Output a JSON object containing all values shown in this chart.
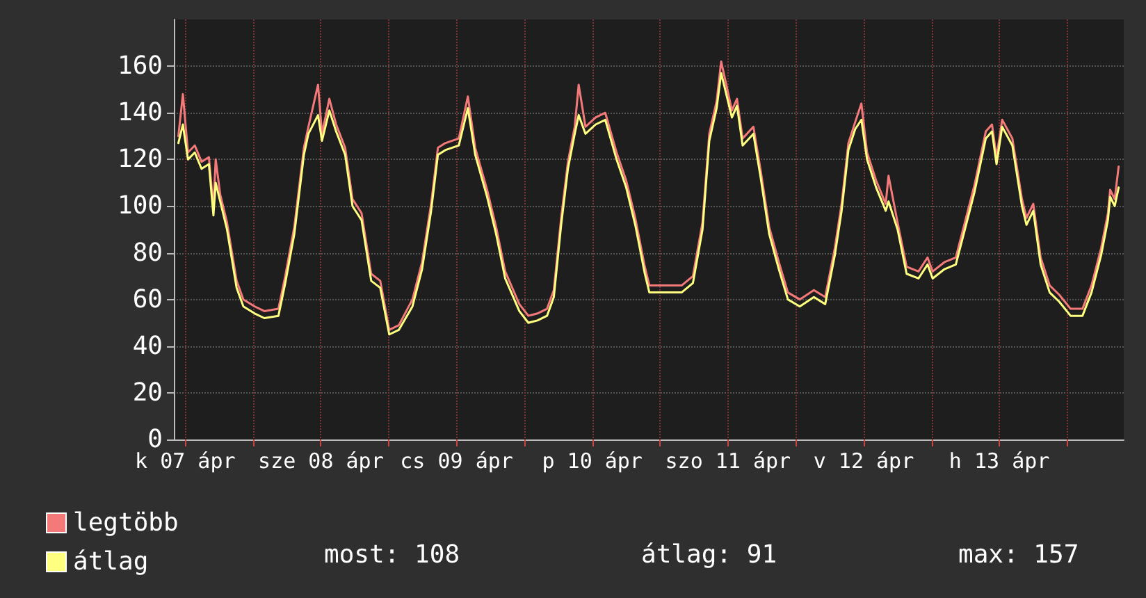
{
  "chart_data": {
    "type": "line",
    "x": [
      "--04-07T10:48",
      "--04-07T11:36",
      "--04-07T12:30",
      "--04-07T13:42",
      "--04-07T14:54",
      "--04-07T16:12",
      "--04-07T17:00",
      "--04-07T17:24",
      "--04-07T18:12",
      "--04-07T19:24",
      "--04-07T21:06",
      "--04-07T22:18",
      "--04-08T00:18",
      "--04-08T02:00",
      "--04-08T04:30",
      "--04-08T05:42",
      "--04-08T07:18",
      "--04-08T09:00",
      "--04-08T09:48",
      "--04-08T11:30",
      "--04-08T12:12",
      "--04-08T13:30",
      "--04-08T14:42",
      "--04-08T16:18",
      "--04-08T17:36",
      "--04-08T19:12",
      "--04-08T20:54",
      "--04-08T22:30",
      "--04-09T00:06",
      "--04-09T01:48",
      "--04-09T04:12",
      "--04-09T05:54",
      "--04-09T07:30",
      "--04-09T08:42",
      "--04-09T10:00",
      "--04-09T12:24",
      "--04-09T14:00",
      "--04-09T15:18",
      "--04-09T17:24",
      "--04-09T19:00",
      "--04-09T20:36",
      "--04-09T23:06",
      "--04-10T00:42",
      "--04-10T02:18",
      "--04-10T04:00",
      "--04-10T05:12",
      "--04-10T06:30",
      "--04-10T07:42",
      "--04-10T08:54",
      "--04-10T09:36",
      "--04-10T10:48",
      "--04-10T12:36",
      "--04-10T14:18",
      "--04-10T16:18",
      "--04-10T18:00",
      "--04-10T19:36",
      "--04-10T21:18",
      "--04-10T22:06",
      "--04-11T00:30",
      "--04-11T03:48",
      "--04-11T05:48",
      "--04-11T07:30",
      "--04-11T08:42",
      "--04-11T10:00",
      "--04-11T10:48",
      "--04-11T12:42",
      "--04-11T13:36",
      "--04-11T14:36",
      "--04-11T16:30",
      "--04-11T17:48",
      "--04-11T19:18",
      "--04-11T21:00",
      "--04-11T22:36",
      "--04-12T00:42",
      "--04-12T03:12",
      "--04-12T05:12",
      "--04-12T06:54",
      "--04-12T08:06",
      "--04-12T09:18",
      "--04-12T10:30",
      "--04-12T11:36",
      "--04-12T12:36",
      "--04-12T14:12",
      "--04-12T15:54",
      "--04-12T16:24",
      "--04-12T18:00",
      "--04-12T19:36",
      "--04-12T21:42",
      "--04-12T23:18",
      "--04-13T00:12",
      "--04-13T02:18",
      "--04-13T04:18",
      "--04-13T05:54",
      "--04-13T07:36",
      "--04-13T09:36",
      "--04-13T10:42",
      "--04-13T11:30",
      "--04-13T12:30",
      "--04-13T14:18",
      "--04-13T16:00",
      "--04-13T16:48",
      "--04-13T18:00",
      "--04-13T19:18",
      "--04-13T20:54",
      "--04-13T22:36",
      "--04-14T00:36",
      "--04-14T02:42",
      "--04-14T04:18",
      "--04-14T06:00",
      "--04-14T07:12",
      "--04-14T07:36",
      "--04-14T08:24",
      "--04-14T09:06"
    ],
    "series": [
      {
        "name": "legtöbb",
        "color": "#f47a7a",
        "values": [
          130,
          148,
          123,
          126,
          119,
          121,
          99,
          120,
          105,
          93,
          68,
          60,
          57,
          55,
          56,
          70,
          91,
          125,
          134,
          152,
          131,
          146,
          135,
          125,
          103,
          97,
          71,
          68,
          47,
          49,
          60,
          76,
          101,
          125,
          127,
          129,
          147,
          125,
          107,
          91,
          72,
          58,
          53,
          54,
          56,
          64,
          95,
          119,
          134,
          152,
          134,
          138,
          140,
          123,
          111,
          95,
          74,
          66,
          66,
          66,
          70,
          93,
          131,
          145,
          162,
          141,
          146,
          129,
          134,
          115,
          91,
          76,
          63,
          60,
          64,
          61,
          82,
          101,
          127,
          136,
          144,
          123,
          111,
          101,
          113,
          93,
          74,
          72,
          78,
          72,
          76,
          78,
          93,
          109,
          132,
          135,
          121,
          137,
          129,
          103,
          95,
          101,
          78,
          66,
          62,
          56,
          56,
          66,
          82,
          97,
          107,
          103,
          117
        ]
      },
      {
        "name": "átlag",
        "color": "#ffff80",
        "values": [
          127,
          135,
          120,
          123,
          116,
          118,
          96,
          110,
          102,
          90,
          65,
          57,
          54,
          52,
          53,
          67,
          88,
          122,
          131,
          139,
          128,
          141,
          132,
          122,
          100,
          94,
          68,
          65,
          45,
          47,
          57,
          73,
          98,
          122,
          124,
          126,
          142,
          122,
          104,
          88,
          69,
          55,
          50,
          51,
          53,
          61,
          92,
          116,
          131,
          139,
          131,
          135,
          137,
          120,
          108,
          92,
          71,
          63,
          63,
          63,
          67,
          90,
          128,
          142,
          157,
          138,
          143,
          126,
          131,
          112,
          88,
          73,
          60,
          57,
          61,
          58,
          79,
          98,
          124,
          133,
          137,
          120,
          108,
          98,
          102,
          90,
          71,
          69,
          75,
          69,
          73,
          75,
          90,
          106,
          129,
          132,
          118,
          134,
          126,
          100,
          92,
          98,
          75,
          63,
          59,
          53,
          53,
          63,
          79,
          94,
          104,
          100,
          108
        ]
      }
    ],
    "xlim": [
      "--04-07T10:00",
      "--04-14T10:00"
    ],
    "xticks": [
      {
        "value": "--04-07T12:00",
        "label": "k 07 ápr"
      },
      {
        "value": "--04-08T00:00",
        "label": null
      },
      {
        "value": "--04-08T12:00",
        "label": "sze 08 ápr"
      },
      {
        "value": "--04-09T00:00",
        "label": null
      },
      {
        "value": "--04-09T12:00",
        "label": "cs 09 ápr"
      },
      {
        "value": "--04-10T00:00",
        "label": null
      },
      {
        "value": "--04-10T12:00",
        "label": "p 10 ápr"
      },
      {
        "value": "--04-11T00:00",
        "label": null
      },
      {
        "value": "--04-11T12:00",
        "label": "szo 11 ápr"
      },
      {
        "value": "--04-12T00:00",
        "label": null
      },
      {
        "value": "--04-12T12:00",
        "label": "v 12 ápr"
      },
      {
        "value": "--04-13T00:00",
        "label": null
      },
      {
        "value": "--04-13T12:00",
        "label": "h 13 ápr"
      },
      {
        "value": "--04-14T00:00",
        "label": null
      }
    ],
    "ylim": [
      0,
      180
    ],
    "yticks": [
      0,
      20,
      40,
      60,
      80,
      100,
      120,
      140,
      160
    ],
    "annotations": [
      "most: 108",
      "átlag: 91",
      "max: 157"
    ],
    "legend": "bottom left",
    "grid": true,
    "marker": "none",
    "line_style": "solid"
  }
}
